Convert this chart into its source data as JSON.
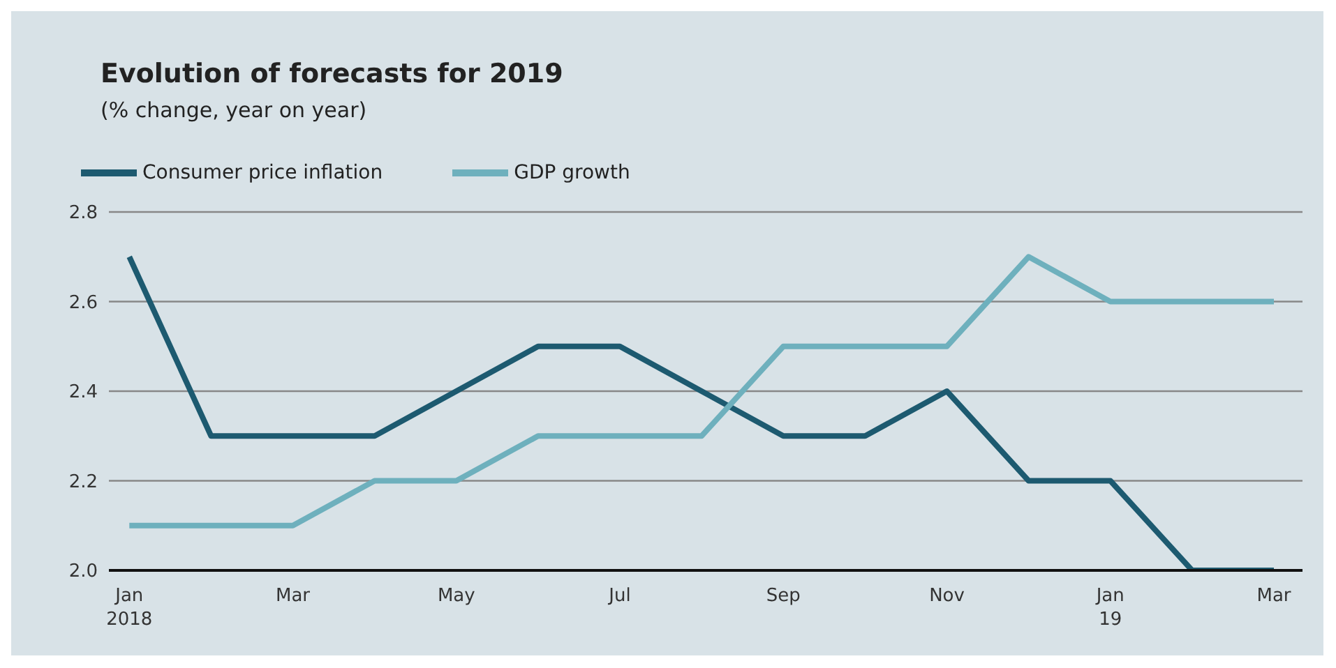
{
  "chart_data": {
    "type": "line",
    "title": "Evolution of forecasts for 2019",
    "subtitle": "(% change, year on year)",
    "categories": [
      "Jan\n2018",
      null,
      "Mar",
      null,
      "May",
      null,
      "Jul",
      null,
      "Sep",
      null,
      "Nov",
      null,
      "Jan\n19",
      null,
      "Mar"
    ],
    "series": [
      {
        "name": "Consumer price inflation",
        "color": "#1d5a70",
        "values": [
          2.7,
          2.3,
          2.3,
          2.3,
          2.4,
          2.5,
          2.5,
          2.4,
          2.3,
          2.3,
          2.4,
          2.2,
          2.2,
          2.0,
          2.0
        ]
      },
      {
        "name": "GDP growth",
        "color": "#6eb0bd",
        "values": [
          2.1,
          2.1,
          2.1,
          2.2,
          2.2,
          2.3,
          2.3,
          2.3,
          2.5,
          2.5,
          2.5,
          2.7,
          2.6,
          2.6,
          2.6
        ]
      }
    ],
    "ylim": [
      2.0,
      2.8
    ],
    "yticks": [
      {
        "value": 2.0,
        "label": "2.0"
      },
      {
        "value": 2.2,
        "label": "2.2"
      },
      {
        "value": 2.4,
        "label": "2.4"
      },
      {
        "value": 2.6,
        "label": "2.6"
      },
      {
        "value": 2.8,
        "label": "2.8"
      }
    ],
    "grid": "y",
    "legend": "top left",
    "marker": "none",
    "line_style": "solid"
  }
}
